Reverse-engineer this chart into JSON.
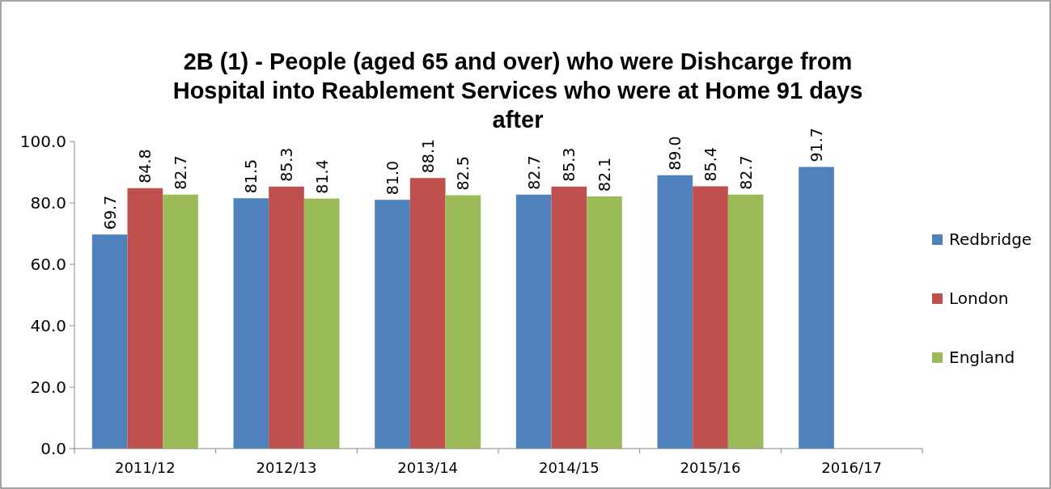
{
  "chart_data": {
    "type": "bar",
    "title": "2B (1) - People (aged 65 and over) who were Dishcarge from Hospital into Reablement Services who were at Home 91 days after",
    "categories": [
      "2011/12",
      "2012/13",
      "2013/14",
      "2014/15",
      "2015/16",
      "2016/17"
    ],
    "series": [
      {
        "name": "Redbridge",
        "color": "#4f81bd",
        "values": [
          69.7,
          81.5,
          81.0,
          82.7,
          89.0,
          91.7
        ],
        "value_labels": [
          "69.7",
          "81.5",
          "81.0",
          "82.7",
          "89.0",
          "91.7"
        ]
      },
      {
        "name": "London",
        "color": "#c0504d",
        "values": [
          84.8,
          85.3,
          88.1,
          85.3,
          85.4,
          null
        ],
        "value_labels": [
          "84.8",
          "85.3",
          "88.1",
          "85.3",
          "85.4",
          null
        ]
      },
      {
        "name": "England",
        "color": "#9bbb59",
        "values": [
          82.7,
          81.4,
          82.5,
          82.1,
          82.7,
          null
        ],
        "value_labels": [
          "82.7",
          "81.4",
          "82.5",
          "82.1",
          "82.7",
          null
        ]
      }
    ],
    "ylim": [
      0,
      100
    ],
    "yticks": [
      {
        "value": 0,
        "label": "0.0"
      },
      {
        "value": 20,
        "label": "20.0"
      },
      {
        "value": 40,
        "label": "40.0"
      },
      {
        "value": 60,
        "label": "60.0"
      },
      {
        "value": 80,
        "label": "80.0"
      },
      {
        "value": 100,
        "label": "100.0"
      }
    ],
    "legend": "right",
    "grid": false
  }
}
